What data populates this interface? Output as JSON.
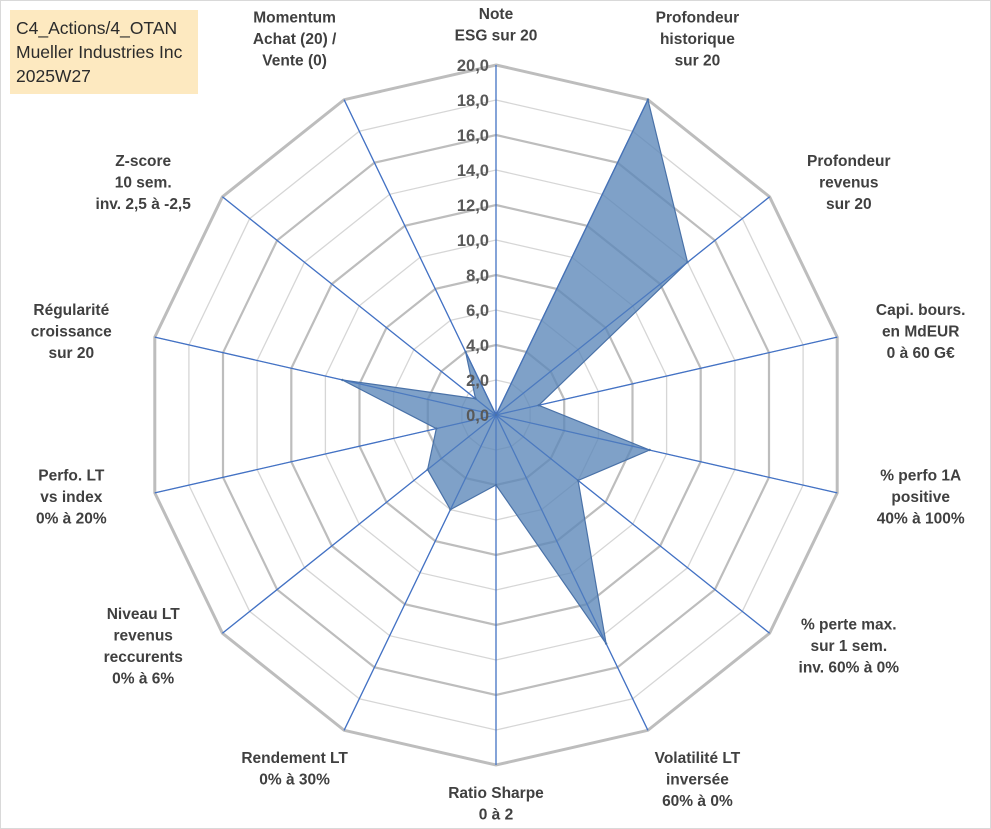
{
  "info": {
    "line1": "C4_Actions/4_OTAN",
    "line2": "Mueller Industries Inc",
    "line3": "2025W27"
  },
  "chart_data": {
    "type": "radar",
    "title": "",
    "range": [
      0,
      20
    ],
    "tick_step": 2,
    "tick_labels": [
      "0,0",
      "2,0",
      "4,0",
      "6,0",
      "8,0",
      "10,0",
      "12,0",
      "14,0",
      "16,0",
      "18,0",
      "20,0"
    ],
    "axes": [
      {
        "label": [
          "Note",
          "ESG sur 20"
        ]
      },
      {
        "label": [
          "Profondeur",
          "historique",
          "sur 20"
        ]
      },
      {
        "label": [
          "Profondeur",
          "revenus",
          "sur 20"
        ]
      },
      {
        "label": [
          "Capi. bours.",
          "en MdEUR",
          "0 à 60 G€"
        ]
      },
      {
        "label": [
          "% perfo 1A",
          "positive",
          "40% à 100%"
        ]
      },
      {
        "label": [
          "% perte max.",
          "sur 1 sem.",
          "inv. 60% à 0%"
        ]
      },
      {
        "label": [
          "Volatilité LT",
          "inversée",
          "60% à 0%"
        ]
      },
      {
        "label": [
          "Ratio Sharpe",
          "0 à 2"
        ]
      },
      {
        "label": [
          "Rendement LT",
          "0% à 30%"
        ]
      },
      {
        "label": [
          "Niveau LT",
          "revenus",
          "reccurents",
          "0% à 6%"
        ]
      },
      {
        "label": [
          "Perfo. LT",
          "vs index",
          "0% à 20%"
        ]
      },
      {
        "label": [
          "Régularité",
          "croissance",
          "sur 20"
        ]
      },
      {
        "label": [
          "Z-score",
          "10 sem.",
          "inv. 2,5 à -2,5"
        ]
      },
      {
        "label": [
          "Momentum",
          "Achat (20) /",
          "Vente (0)"
        ]
      }
    ],
    "series": [
      {
        "values": [
          0.0,
          20.0,
          14.0,
          2.5,
          9.0,
          6.0,
          14.5,
          4.0,
          6.0,
          5.0,
          3.5,
          9.0,
          1.5,
          4.0
        ]
      }
    ],
    "colors": {
      "fill": "#5b86b8",
      "stroke": "#4a72a8",
      "axis": "#4472c4",
      "grid": "#c8c8c8",
      "tick": "#595959",
      "label": "#404040"
    },
    "grid": true,
    "legend": "none"
  }
}
